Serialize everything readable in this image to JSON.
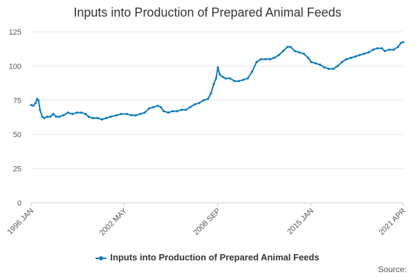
{
  "chart_data": {
    "type": "line",
    "title": "Inputs into Production of Prepared Animal Feeds",
    "xlabel": "",
    "ylabel": "",
    "ylim": [
      0,
      125
    ],
    "yticks": [
      0,
      25,
      50,
      75,
      100,
      125
    ],
    "xlim": [
      1996.0,
      2021.25
    ],
    "xtick_labels": [
      {
        "t": 1996.0,
        "label": "1996 JAN"
      },
      {
        "t": 2002.33,
        "label": "2002 MAY"
      },
      {
        "t": 2008.67,
        "label": "2008 SEP"
      },
      {
        "t": 2015.0,
        "label": "2015 JAN"
      },
      {
        "t": 2021.25,
        "label": "2021 APR"
      }
    ],
    "series": [
      {
        "name": "Inputs into Production of Prepared Animal Feeds",
        "color": "#0a7bbd",
        "points": [
          [
            1996.0,
            71.5
          ],
          [
            1996.15,
            71
          ],
          [
            1996.3,
            73
          ],
          [
            1996.4,
            76
          ],
          [
            1996.5,
            75
          ],
          [
            1996.6,
            68
          ],
          [
            1996.75,
            63
          ],
          [
            1996.9,
            62
          ],
          [
            1997.1,
            63
          ],
          [
            1997.3,
            63
          ],
          [
            1997.5,
            65
          ],
          [
            1997.7,
            63
          ],
          [
            1997.9,
            63
          ],
          [
            1998.2,
            64
          ],
          [
            1998.5,
            66
          ],
          [
            1998.8,
            65
          ],
          [
            1999.1,
            66
          ],
          [
            1999.4,
            66
          ],
          [
            1999.7,
            65
          ],
          [
            1999.9,
            63
          ],
          [
            2000.2,
            62
          ],
          [
            2000.5,
            62
          ],
          [
            2000.8,
            61
          ],
          [
            2001.1,
            62
          ],
          [
            2001.4,
            63
          ],
          [
            2001.8,
            64
          ],
          [
            2002.1,
            65
          ],
          [
            2002.5,
            65
          ],
          [
            2002.8,
            64
          ],
          [
            2003.1,
            64
          ],
          [
            2003.4,
            65
          ],
          [
            2003.7,
            66
          ],
          [
            2004.0,
            69
          ],
          [
            2004.3,
            70
          ],
          [
            2004.6,
            71
          ],
          [
            2004.8,
            70
          ],
          [
            2005.0,
            67
          ],
          [
            2005.3,
            66
          ],
          [
            2005.6,
            67
          ],
          [
            2005.9,
            67
          ],
          [
            2006.2,
            68
          ],
          [
            2006.5,
            68
          ],
          [
            2006.8,
            70
          ],
          [
            2007.1,
            72
          ],
          [
            2007.4,
            73
          ],
          [
            2007.7,
            75
          ],
          [
            2008.0,
            76
          ],
          [
            2008.2,
            80
          ],
          [
            2008.4,
            87
          ],
          [
            2008.55,
            91
          ],
          [
            2008.67,
            99
          ],
          [
            2008.8,
            94
          ],
          [
            2009.0,
            92
          ],
          [
            2009.2,
            91
          ],
          [
            2009.5,
            91
          ],
          [
            2009.8,
            89
          ],
          [
            2010.1,
            89
          ],
          [
            2010.4,
            90
          ],
          [
            2010.7,
            91
          ],
          [
            2011.0,
            96
          ],
          [
            2011.3,
            103
          ],
          [
            2011.6,
            105
          ],
          [
            2011.9,
            105
          ],
          [
            2012.2,
            105
          ],
          [
            2012.5,
            106
          ],
          [
            2012.8,
            108
          ],
          [
            2013.1,
            111
          ],
          [
            2013.4,
            114
          ],
          [
            2013.6,
            114
          ],
          [
            2013.9,
            111
          ],
          [
            2014.2,
            110
          ],
          [
            2014.5,
            109
          ],
          [
            2014.8,
            106
          ],
          [
            2015.0,
            103
          ],
          [
            2015.3,
            102
          ],
          [
            2015.6,
            101
          ],
          [
            2015.9,
            99
          ],
          [
            2016.2,
            98
          ],
          [
            2016.5,
            98
          ],
          [
            2016.8,
            100
          ],
          [
            2017.1,
            103
          ],
          [
            2017.4,
            105
          ],
          [
            2017.7,
            106
          ],
          [
            2018.0,
            107
          ],
          [
            2018.3,
            108
          ],
          [
            2018.6,
            109
          ],
          [
            2018.9,
            110
          ],
          [
            2019.2,
            112
          ],
          [
            2019.5,
            113
          ],
          [
            2019.8,
            113
          ],
          [
            2020.0,
            111
          ],
          [
            2020.3,
            112
          ],
          [
            2020.6,
            112
          ],
          [
            2020.9,
            114
          ],
          [
            2021.1,
            117
          ],
          [
            2021.25,
            117.5
          ]
        ]
      }
    ],
    "legend": {
      "position": "bottom",
      "label": "Inputs into Production of Prepared Animal Feeds"
    },
    "source_label": "Source:"
  },
  "colors": {
    "line": "#0a7bbd",
    "grid": "#e6e6e6",
    "axis": "#cccccc"
  }
}
